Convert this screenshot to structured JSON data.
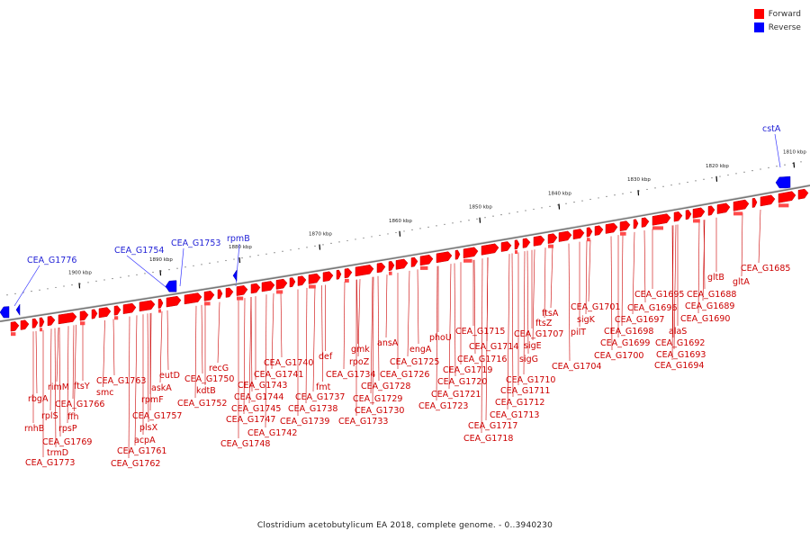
{
  "legend": {
    "forward_label": "Forward",
    "reverse_label": "Reverse",
    "forward_color": "#ff0000",
    "reverse_color": "#0000ff"
  },
  "caption": "Clostridium acetobutylicum EA 2018, complete genome. - 0..3940230",
  "scale": {
    "ticks": [
      "1900 kbp",
      "1890 kbp",
      "1880 kbp",
      "1870 kbp",
      "1860 kbp",
      "1850 kbp",
      "1840 kbp",
      "1830 kbp",
      "1820 kbp",
      "1810 kbp"
    ]
  },
  "reverse_genes": [
    "CEA_G1776",
    "CEA_G1754",
    "CEA_G1753",
    "rpmB",
    "cstA"
  ],
  "forward_genes": [
    "rbgA",
    "rnhB",
    "rplS",
    "rimM",
    "trmD",
    "CEA_G1773",
    "rpsP",
    "ffh",
    "CEA_G1769",
    "ftsY",
    "CEA_G1766",
    "smc",
    "CEA_G1763",
    "acpA",
    "CEA_G1762",
    "CEA_G1761",
    "plsX",
    "rpmF",
    "CEA_G1757",
    "askA",
    "eutD",
    "kdtB",
    "CEA_G1752",
    "recG",
    "CEA_G1750",
    "CEA_G1748",
    "CEA_G1747",
    "CEA_G1745",
    "CEA_G1744",
    "CEA_G1743",
    "CEA_G1742",
    "CEA_G1741",
    "CEA_G1740",
    "CEA_G1739",
    "CEA_G1738",
    "CEA_G1737",
    "fmt",
    "def",
    "CEA_G1734",
    "rpoZ",
    "gmk",
    "CEA_G1733",
    "CEA_G1730",
    "CEA_G1729",
    "CEA_G1728",
    "CEA_G1726",
    "ansA",
    "CEA_G1725",
    "engA",
    "phoU",
    "CEA_G1723",
    "CEA_G1721",
    "CEA_G1720",
    "CEA_G1719",
    "CEA_G1718",
    "CEA_G1717",
    "CEA_G1716",
    "CEA_G1715",
    "CEA_G1714",
    "CEA_G1713",
    "CEA_G1712",
    "CEA_G1711",
    "CEA_G1710",
    "sigE",
    "sigG",
    "CEA_G1707",
    "ftsZ",
    "ftsA",
    "CEA_G1704",
    "pilT",
    "sigK",
    "CEA_G1701",
    "CEA_G1700",
    "CEA_G1699",
    "CEA_G1698",
    "CEA_G1697",
    "CEA_G1696",
    "CEA_G1695",
    "CEA_G1694",
    "CEA_G1693",
    "CEA_G1692",
    "alaS",
    "CEA_G1690",
    "CEA_G1689",
    "CEA_G1688",
    "gltB",
    "gltA",
    "CEA_G1685"
  ]
}
